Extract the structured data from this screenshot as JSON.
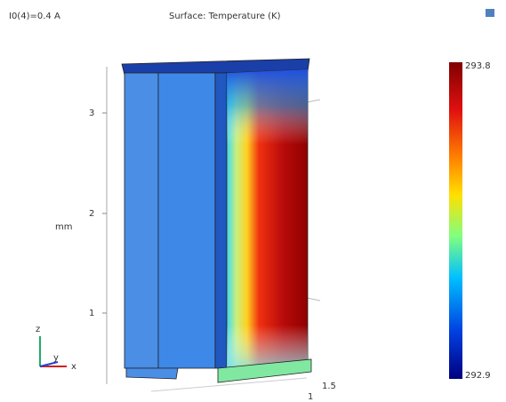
{
  "header": {
    "parameter": "I0(4)=0.4 A",
    "title": "Surface: Temperature (K)"
  },
  "axes": {
    "z_ticks": [
      "3",
      "2",
      "1"
    ],
    "z_unit": "mm",
    "x_ticks": [
      "1.5",
      "1"
    ]
  },
  "triad": {
    "z": "z",
    "y": "y",
    "x": "x"
  },
  "colorbar": {
    "max": "293.8",
    "min": "292.9"
  }
}
